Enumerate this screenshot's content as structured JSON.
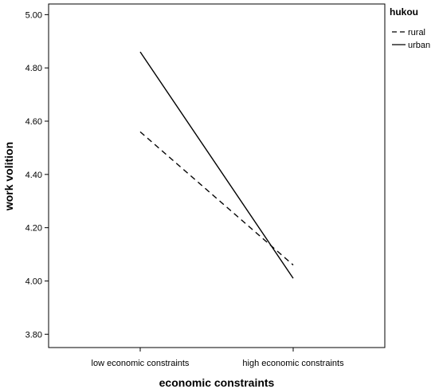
{
  "chart_data": {
    "type": "line",
    "title": "",
    "xlabel": "economic constraints",
    "ylabel": "work volition",
    "categories": [
      "low economic constraints",
      "high economic constraints"
    ],
    "ylim": [
      3.75,
      5.04
    ],
    "yticks": [
      3.8,
      4.0,
      4.2,
      4.4,
      4.6,
      4.8,
      5.0
    ],
    "ytick_labels": [
      "3.80",
      "4.00",
      "4.20",
      "4.40",
      "4.60",
      "4.80",
      "5.00"
    ],
    "grid": false,
    "legend": {
      "title": "hukou",
      "placement": "right"
    },
    "series": [
      {
        "name": "rural",
        "values": [
          4.56,
          4.06
        ],
        "line_style": "dashed",
        "color": "#000000"
      },
      {
        "name": "urban",
        "values": [
          4.86,
          4.01
        ],
        "line_style": "solid",
        "color": "#000000"
      }
    ]
  }
}
